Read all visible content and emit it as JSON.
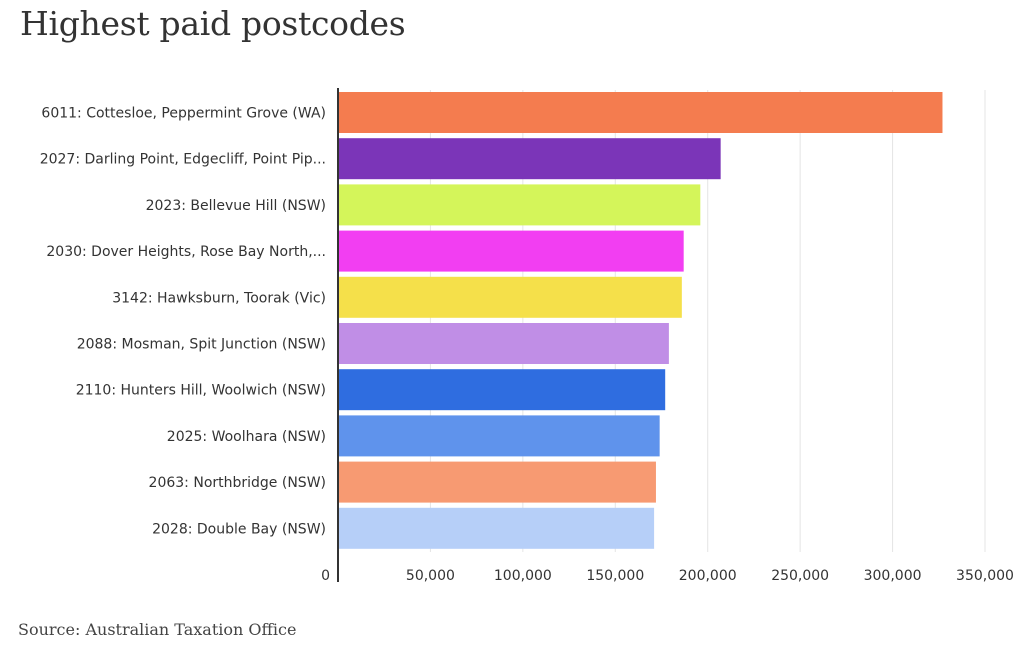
{
  "chart_data": {
    "type": "bar",
    "orientation": "horizontal",
    "title": "Highest paid postcodes",
    "source": "Source: Australian Taxation Office",
    "categories": [
      "6011: Cottesloe, Peppermint Grove (WA)",
      "2027: Darling Point, Edgecliff, Point Pip...",
      "2023: Bellevue Hill (NSW)",
      "2030: Dover Heights, Rose Bay North,...",
      "3142: Hawksburn, Toorak (Vic)",
      "2088: Mosman, Spit Junction (NSW)",
      "2110: Hunters Hill, Woolwich (NSW)",
      "2025: Woolhara (NSW)",
      "2063: Northbridge (NSW)",
      "2028: Double Bay (NSW)"
    ],
    "values": [
      327000,
      207000,
      196000,
      187000,
      186000,
      179000,
      177000,
      174000,
      172000,
      171000
    ],
    "colors": [
      "#f47c4f",
      "#7b35b8",
      "#d4f55a",
      "#f23ef2",
      "#f5e04a",
      "#c08ee6",
      "#2f6de0",
      "#5f93ec",
      "#f79a72",
      "#b6cff8"
    ],
    "xlim": [
      0,
      350000
    ],
    "xticks": [
      0,
      50000,
      100000,
      150000,
      200000,
      250000,
      300000,
      350000
    ],
    "xtick_labels": [
      "0",
      "50,000",
      "100,000",
      "150,000",
      "200,000",
      "250,000",
      "300,000",
      "350,000"
    ],
    "grid": true,
    "legend": "none"
  }
}
